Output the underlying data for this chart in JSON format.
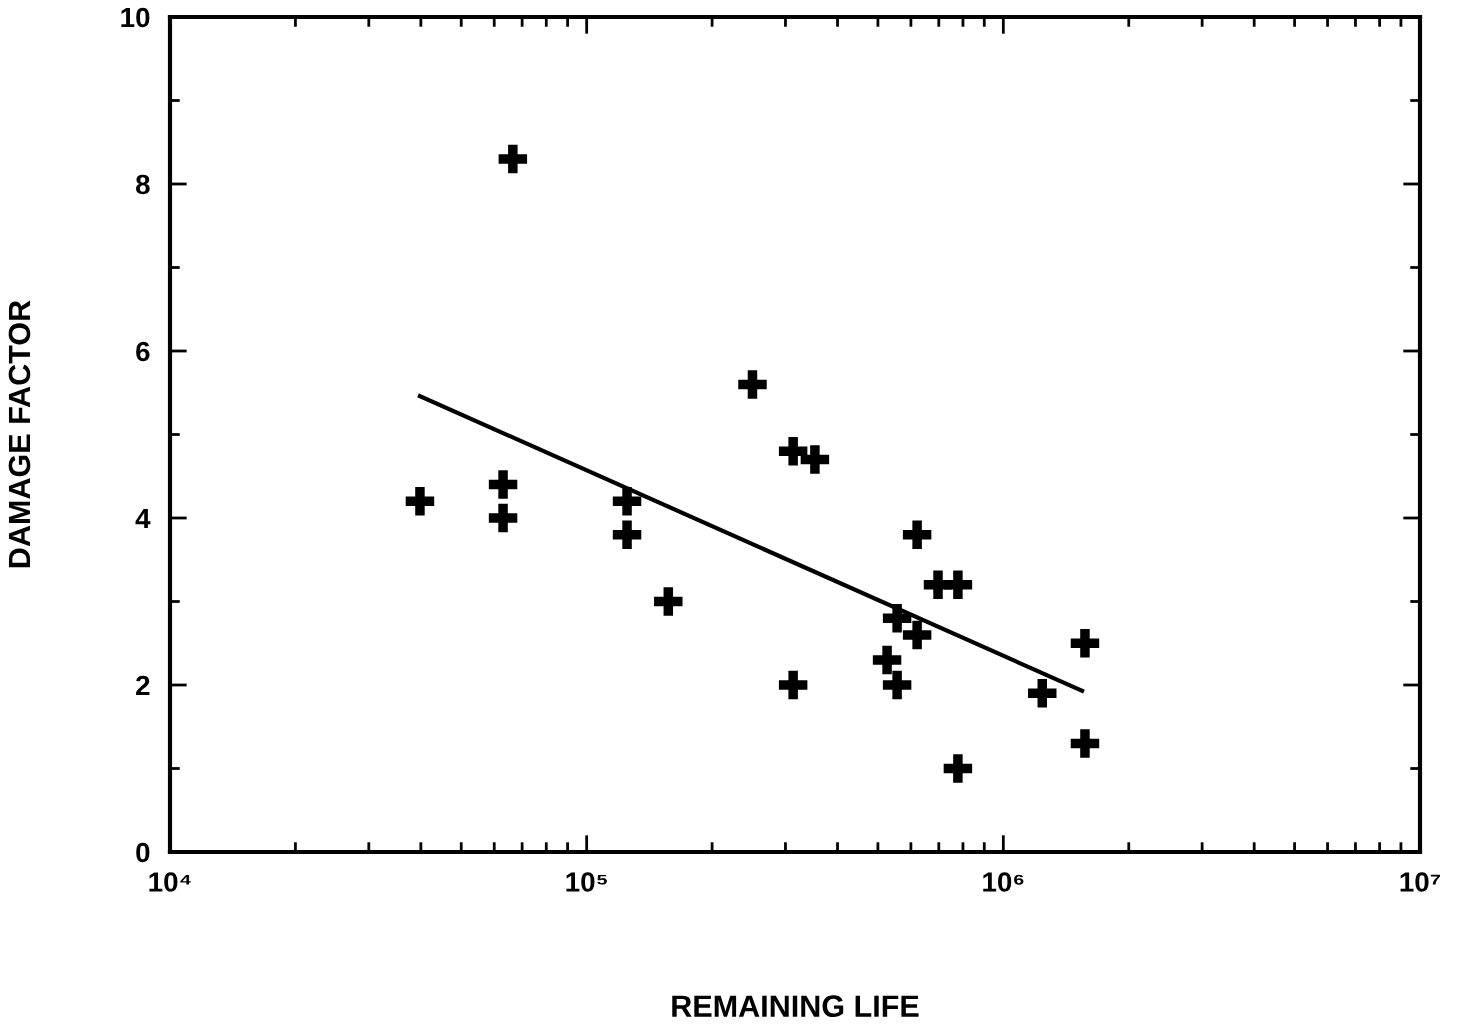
{
  "chart_data": {
    "type": "scatter",
    "xlabel": "REMAINING LIFE",
    "ylabel": "DAMAGE FACTOR",
    "log": "x",
    "xlim": [
      10000,
      10000000
    ],
    "xticks": [
      {
        "value": 10000,
        "label": "10⁴"
      },
      {
        "value": 100000,
        "label": "10⁵"
      },
      {
        "value": 1000000,
        "label": "10⁶"
      },
      {
        "value": 10000000,
        "label": "10⁷"
      }
    ],
    "ylim": [
      0,
      10
    ],
    "yticks": [
      0,
      {
        "value": 1,
        "label": null
      },
      2,
      {
        "value": 3,
        "label": null
      },
      4,
      {
        "value": 5,
        "label": null
      },
      6,
      {
        "value": 7,
        "label": null
      },
      8,
      {
        "value": 9,
        "label": null
      },
      10
    ],
    "grid": false,
    "legend": false,
    "series": [
      {
        "color": "#000000",
        "marker": "cross",
        "x": [
          39800,
          66500,
          63000,
          63000,
          125000,
          125000,
          157000,
          250000,
          313000,
          353000,
          313000,
          526000,
          556000,
          556000,
          621000,
          621000,
          697000,
          778000,
          778000,
          1240000,
          1570000,
          1570000
        ],
        "values": [
          4.2,
          8.3,
          4.4,
          4.0,
          4.2,
          3.8,
          3.0,
          5.6,
          4.8,
          4.7,
          2.0,
          2.3,
          2.8,
          2.0,
          3.8,
          2.6,
          3.2,
          3.2,
          1.0,
          1.9,
          2.5,
          1.3
        ]
      },
      {
        "type": "line",
        "color": "#000000",
        "x": [
          39800,
          1545000
        ],
        "values": [
          5.46,
          1.93
        ]
      }
    ]
  }
}
